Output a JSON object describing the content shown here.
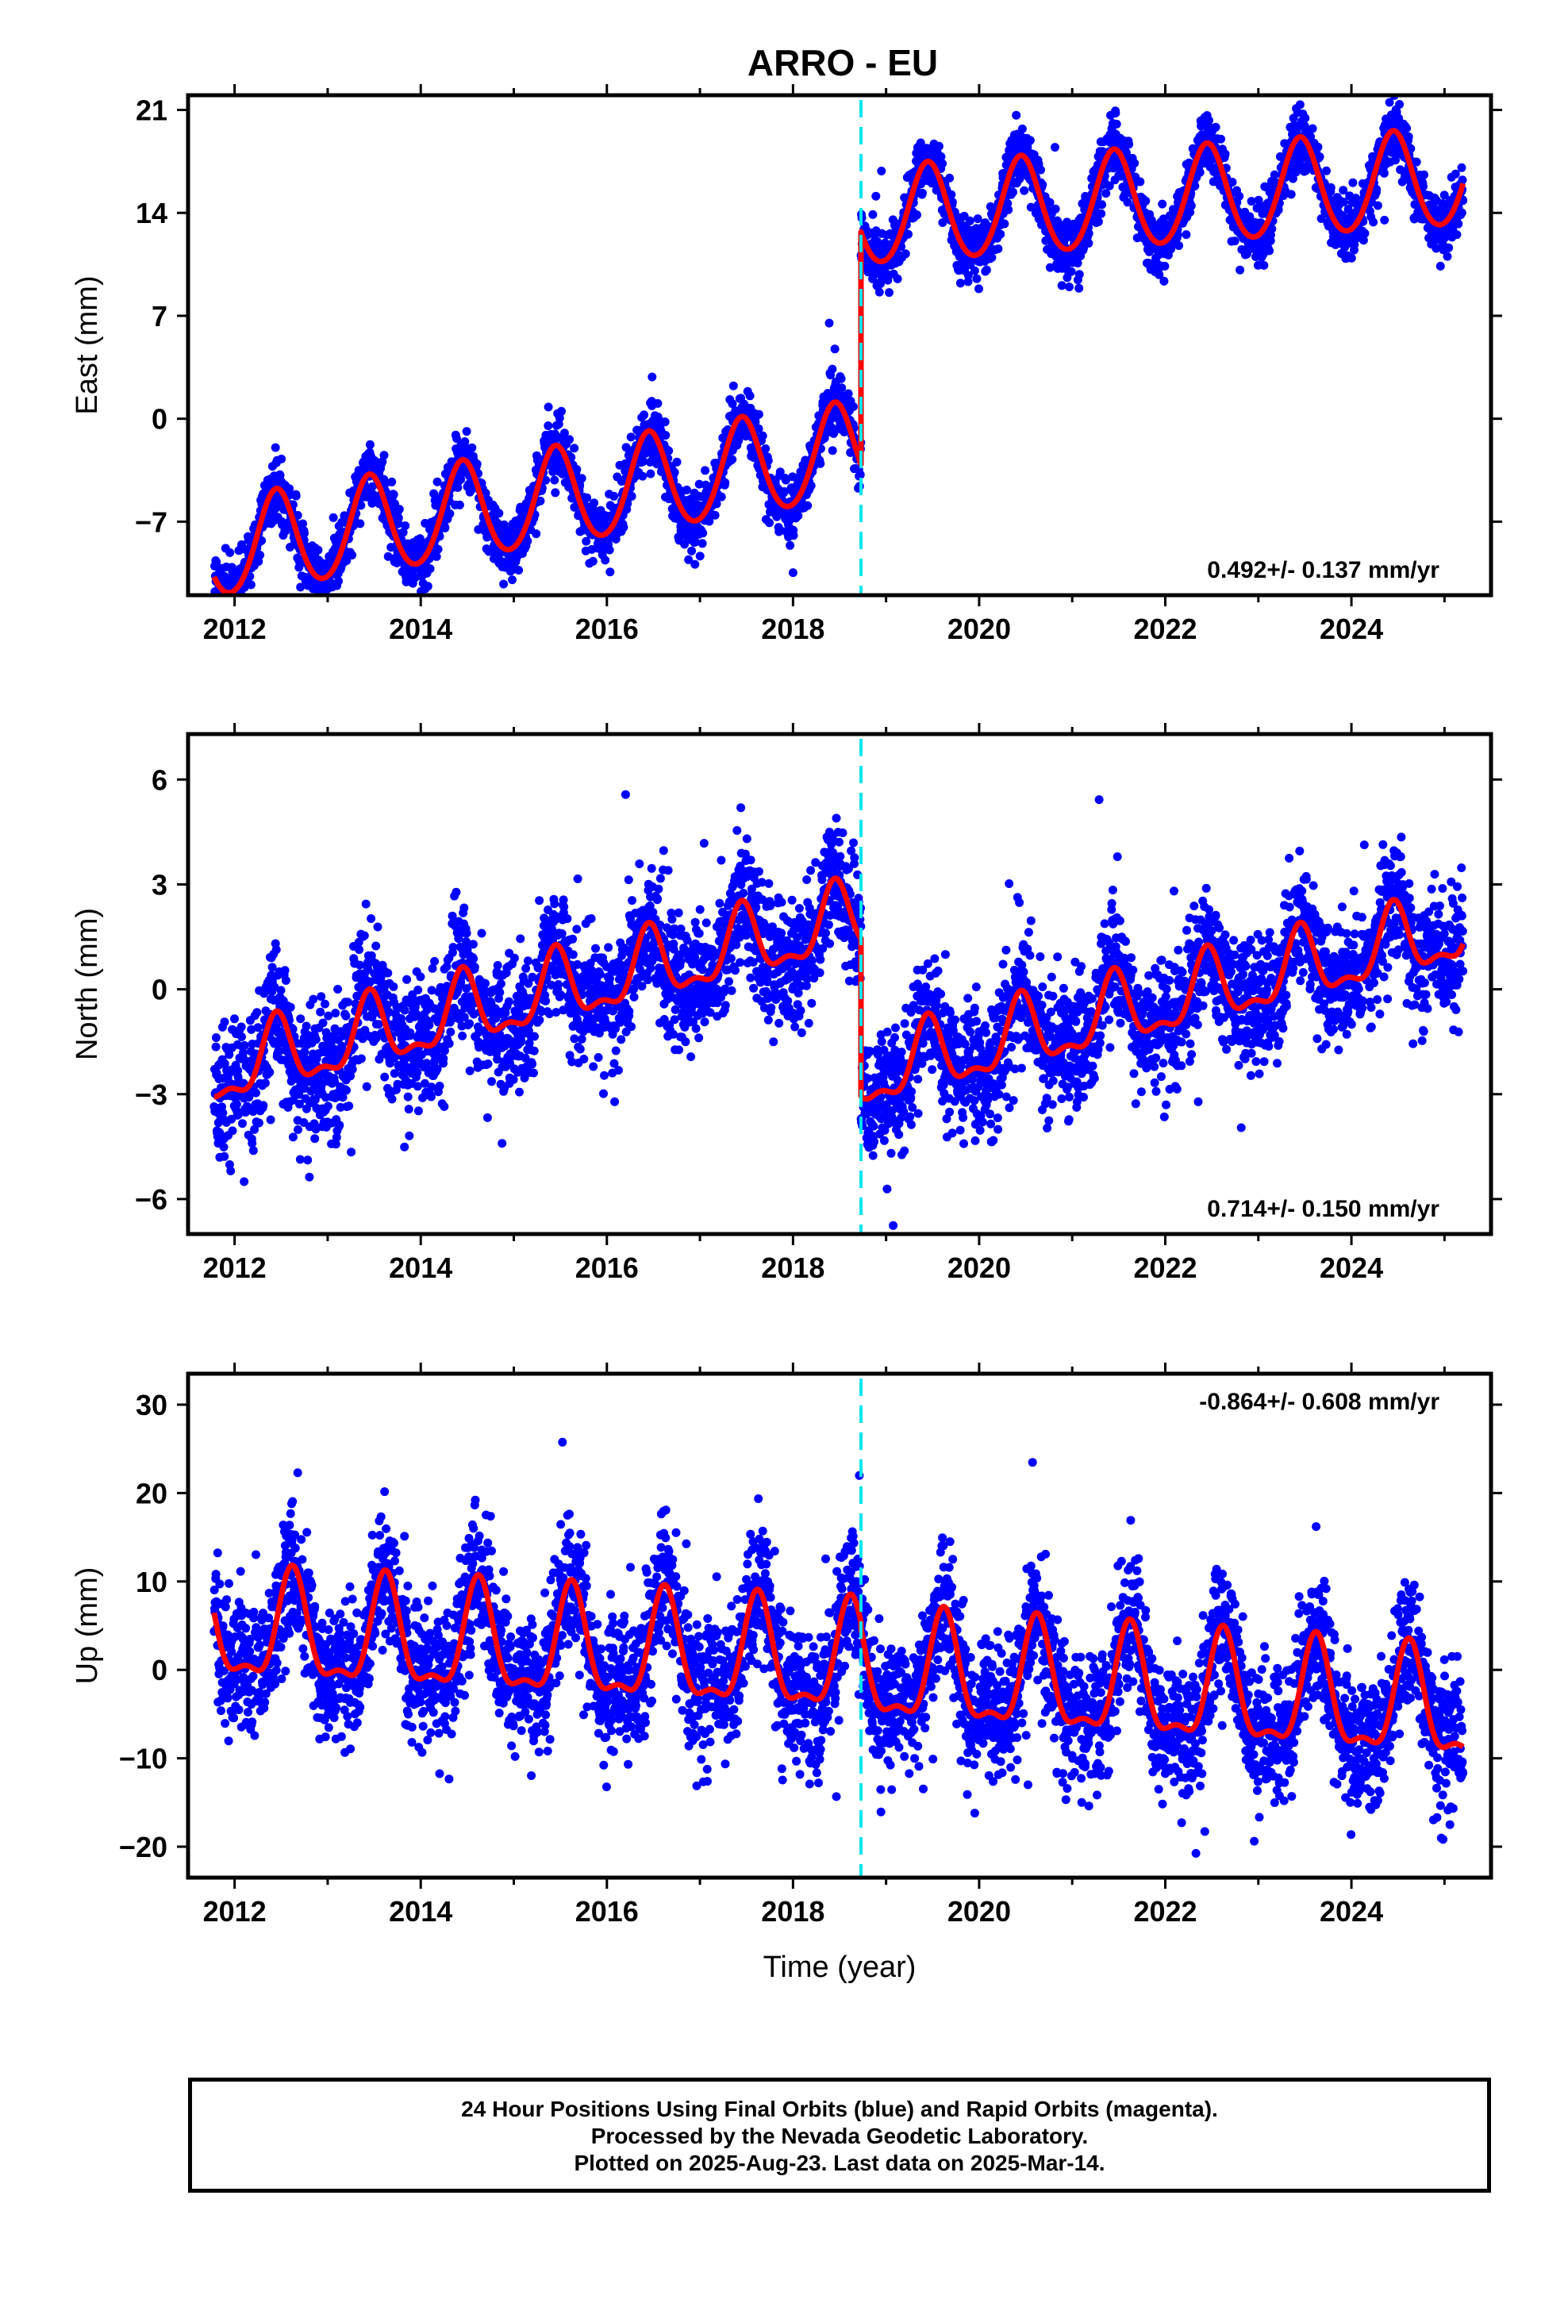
{
  "title": "ARRO - EU",
  "colors": {
    "final_orbits": "#0000ff",
    "rapid_orbits": "#ff00ff",
    "model": "#ff0000",
    "offset_line": "#00e5ee"
  },
  "footer": {
    "line1": "24 Hour Positions Using Final Orbits (blue) and Rapid Orbits (magenta).",
    "line2": "Processed by the Nevada Geodetic Laboratory.",
    "line3": "Plotted on 2025-Aug-23. Last data on 2025-Mar-14."
  },
  "chart_data": [
    {
      "type": "scatter",
      "component": "east",
      "ylabel": "East (mm)",
      "xlabel": "",
      "xlim": [
        2011.5,
        2025.5
      ],
      "ylim": [
        -12,
        22
      ],
      "xticks": [
        2012,
        2014,
        2016,
        2018,
        2020,
        2022,
        2024
      ],
      "yticks": [
        -7,
        0,
        7,
        14,
        21
      ],
      "ytick_labels": [
        "−7",
        "0",
        "7",
        "14",
        "21"
      ],
      "rate_label": "0.492+/- 0.137 mm/yr",
      "rate_position": "bottom-right",
      "offset_epoch": 2018.73,
      "data_start": 2011.78,
      "data_end": 2025.2,
      "model": {
        "pre_offset_start": -9.0,
        "pre_offset_end": -2.2,
        "post_offset_start": 13.6,
        "post_offset_end": 16.3,
        "annual_amplitude": 3.3,
        "semiannual_amplitude": 0.3,
        "annual_peak_fraction": 0.45,
        "scatter": 1.0
      }
    },
    {
      "type": "scatter",
      "component": "north",
      "ylabel": "North (mm)",
      "xlabel": "",
      "xlim": [
        2011.5,
        2025.5
      ],
      "ylim": [
        -7,
        7.3
      ],
      "xticks": [
        2012,
        2014,
        2016,
        2018,
        2020,
        2022,
        2024
      ],
      "yticks": [
        -6,
        -3,
        0,
        3,
        6
      ],
      "ytick_labels": [
        "−6",
        "−3",
        "0",
        "3",
        "6"
      ],
      "rate_label": "0.714+/- 0.150 mm/yr",
      "rate_position": "bottom-right",
      "offset_epoch": 2018.73,
      "data_start": 2011.78,
      "data_end": 2025.2,
      "model": {
        "pre_offset_start": -2.4,
        "pre_offset_end": 2.0,
        "post_offset_start": -2.5,
        "post_offset_end": 1.7,
        "annual_amplitude": 0.95,
        "semiannual_amplitude": 0.4,
        "annual_peak_fraction": 0.45,
        "scatter": 0.9
      }
    },
    {
      "type": "scatter",
      "component": "up",
      "ylabel": "Up (mm)",
      "xlabel": "Time (year)",
      "xlim": [
        2011.5,
        2025.5
      ],
      "ylim": [
        -23.5,
        33.5
      ],
      "xticks": [
        2012,
        2014,
        2016,
        2018,
        2020,
        2022,
        2024
      ],
      "yticks": [
        -20,
        -10,
        0,
        10,
        20,
        30
      ],
      "ytick_labels": [
        "−20",
        "−10",
        "0",
        "10",
        "20",
        "30"
      ],
      "rate_label": "-0.864+/- 0.608 mm/yr",
      "rate_position": "top-right",
      "offset_epoch": 2018.73,
      "data_start": 2011.78,
      "data_end": 2025.2,
      "model": {
        "pre_offset_start": 4.3,
        "pre_offset_end": 0.5,
        "post_offset_start": -0.2,
        "post_offset_end": -4.8,
        "annual_amplitude": 5.8,
        "semiannual_amplitude": 2.2,
        "annual_peak_fraction": 0.62,
        "scatter": 3.8
      }
    }
  ]
}
